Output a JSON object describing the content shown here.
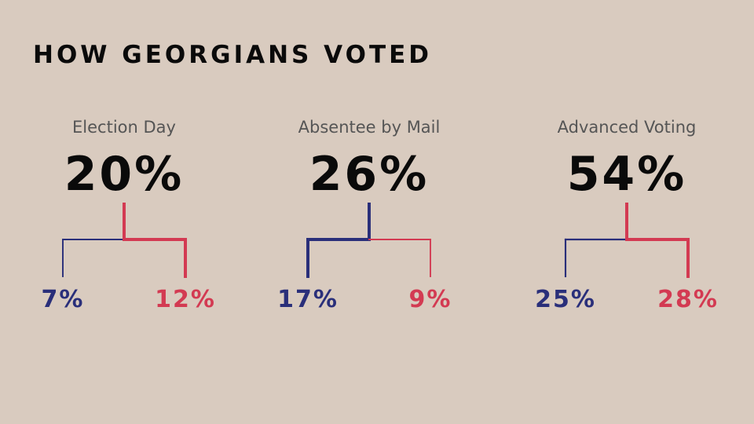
{
  "page": {
    "title": "HOW GEORGIANS VOTED"
  },
  "colors": {
    "blue": "#2a2f7a",
    "red": "#d33a52",
    "text": "#0a0a0a",
    "label": "#555555",
    "background": "#d9cbbf"
  },
  "chart_data": {
    "type": "bar",
    "title": "HOW GEORGIANS VOTED",
    "categories": [
      "Election Day",
      "Absentee by Mail",
      "Advanced Voting"
    ],
    "groups": [
      {
        "label": "Election Day",
        "total": 20,
        "total_text": "20%",
        "parts": [
          {
            "value": 7,
            "text": "7%",
            "color": "#2a2f7a"
          },
          {
            "value": 12,
            "text": "12%",
            "color": "#d33a52"
          }
        ]
      },
      {
        "label": "Absentee by Mail",
        "total": 26,
        "total_text": "26%",
        "parts": [
          {
            "value": 17,
            "text": "17%",
            "color": "#2a2f7a"
          },
          {
            "value": 9,
            "text": "9%",
            "color": "#d33a52"
          }
        ]
      },
      {
        "label": "Advanced Voting",
        "total": 54,
        "total_text": "54%",
        "parts": [
          {
            "value": 25,
            "text": "25%",
            "color": "#2a2f7a"
          },
          {
            "value": 28,
            "text": "28%",
            "color": "#d33a52"
          }
        ]
      }
    ]
  }
}
